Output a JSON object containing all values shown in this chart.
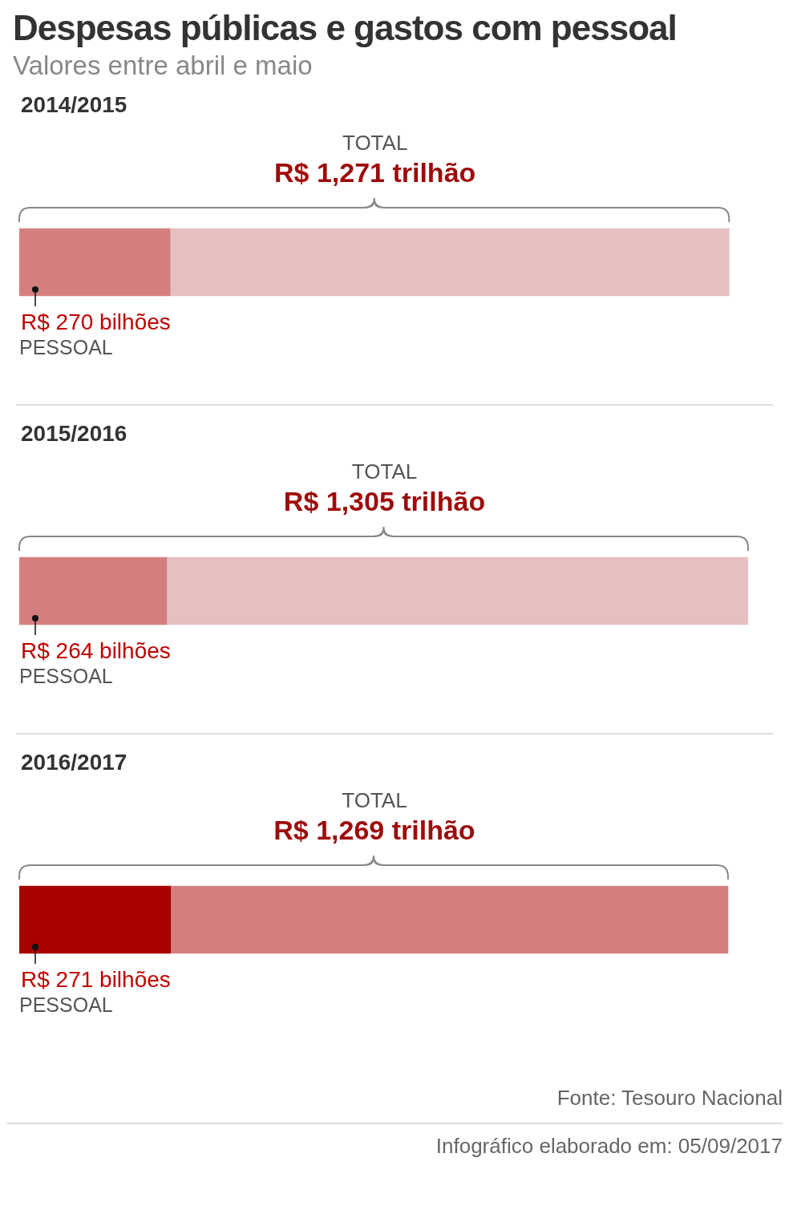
{
  "chart_data": {
    "type": "bar",
    "title": "Despesas públicas e gastos com pessoal",
    "subtitle": "Valores entre abril e maio",
    "orientation": "horizontal",
    "stacked": true,
    "categories": [
      "2014/2015",
      "2015/2016",
      "2016/2017"
    ],
    "series": [
      {
        "name": "PESSOAL",
        "colors": [
          "#d47f7f",
          "#d47f7f",
          "#a80000"
        ],
        "values": [
          270,
          264,
          271
        ],
        "value_labels": [
          "R$ 270 bilhões",
          "R$ 264 bilhões",
          "R$ 271 bilhões"
        ]
      },
      {
        "colors": [
          "#e8bfc0",
          "#e8bfc0",
          "#d47f7f"
        ],
        "values": [
          1001,
          1041,
          998
        ]
      }
    ],
    "totals": [
      "R$ 1,271 trilhão",
      "R$ 1,305 trilhão",
      "R$ 1,269 trilhão"
    ],
    "xlim": [
      0,
      1305
    ],
    "tick_labels": false,
    "legend": false,
    "grid": false,
    "annotations": [
      "TOTAL",
      "TOTAL",
      "TOTAL",
      "Fonte: Tesouro Nacional",
      "Infográfico elaborado em: 05/09/2017"
    ]
  }
}
